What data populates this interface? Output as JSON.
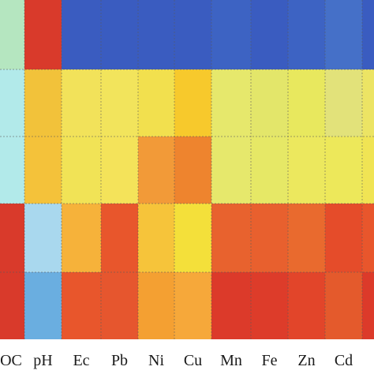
{
  "chart_data": {
    "type": "heatmap",
    "columns": [
      "OC",
      "pH",
      "Ec",
      "Pb",
      "Ni",
      "Cu",
      "Mn",
      "Fe",
      "Zn",
      "Cd",
      ""
    ],
    "row_count": 5,
    "cell_colors": [
      [
        "#b5e6c0",
        "#d93a2b",
        "#3a5cc0",
        "#3a5cc0",
        "#3a5cc0",
        "#3a5cc0",
        "#3d63c3",
        "#3a5cc0",
        "#3d63c3",
        "#4570c8",
        "#3a5cc0"
      ],
      [
        "#b2eaea",
        "#f2c23a",
        "#f2e25a",
        "#f2e45c",
        "#f2e04e",
        "#f7c92c",
        "#e6e86c",
        "#e3e66a",
        "#e8e85e",
        "#e2e27a",
        "#ece464"
      ],
      [
        "#b2eaea",
        "#f4c23a",
        "#f1e356",
        "#f4e35a",
        "#f29a38",
        "#ee842e",
        "#e6e86c",
        "#e6e866",
        "#ece85e",
        "#ede85a",
        "#f0e454"
      ],
      [
        "#d93a2b",
        "#a9d8ee",
        "#f6b23a",
        "#e8562c",
        "#f6c43a",
        "#f4e03a",
        "#e8622e",
        "#e8602e",
        "#e96a2e",
        "#e54c2a",
        "#e8562c"
      ],
      [
        "#d93a2b",
        "#6aaee0",
        "#e8562c",
        "#e6562e",
        "#f4a032",
        "#f6a83a",
        "#dc3a2a",
        "#dd3c2a",
        "#e2452a",
        "#e45a2c",
        "#dc3a2a"
      ]
    ],
    "xlabel": "",
    "ylabel": "",
    "title": ""
  }
}
